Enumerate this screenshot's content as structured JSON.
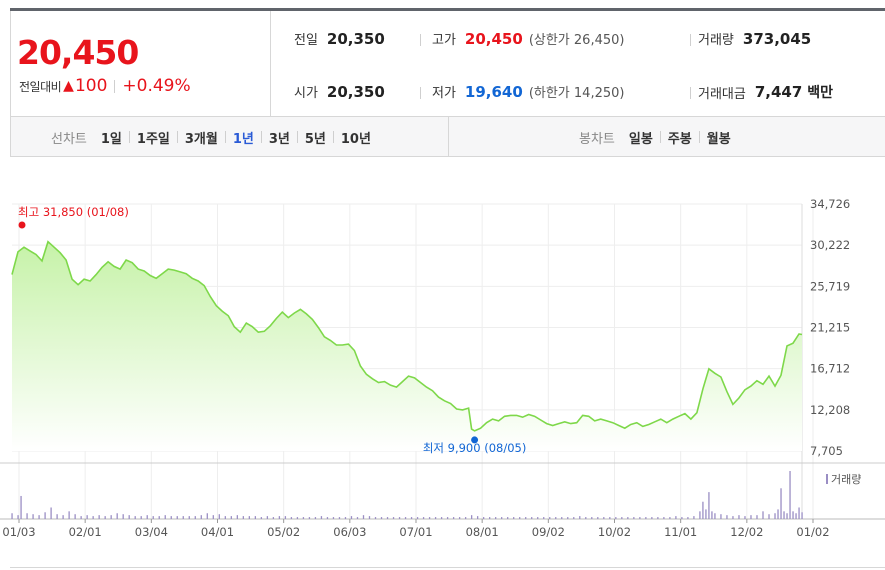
{
  "quote": {
    "price": "20,450",
    "change_label": "전일대비",
    "change_arrow": "▲",
    "change_value": "100",
    "change_pct": "+0.49%"
  },
  "info": {
    "prev_close": {
      "label": "전일",
      "value": "20,350"
    },
    "high": {
      "label": "고가",
      "value": "20,450",
      "extra": "(상한가 26,450)"
    },
    "volume": {
      "label": "거래량",
      "value": "373,045"
    },
    "open": {
      "label": "시가",
      "value": "20,350"
    },
    "low": {
      "label": "저가",
      "value": "19,640",
      "extra": "(하한가 14,250)"
    },
    "amount": {
      "label": "거래대금",
      "value": "7,447",
      "unit": "백만"
    }
  },
  "tabs": {
    "line_head": "선차트",
    "line_tabs": [
      "1일",
      "1주일",
      "3개월",
      "1년",
      "3년",
      "5년",
      "10년"
    ],
    "active": "1년",
    "candle_head": "봉차트",
    "candle_tabs": [
      "일봉",
      "주봉",
      "월봉"
    ]
  },
  "colors": {
    "up": "#e8141c",
    "down": "#1266d4",
    "line": "#7ed84a",
    "area_top": "#c6f2a8",
    "area_bottom": "#ffffff",
    "volume_bar": "#9a8ec4",
    "active_tab": "#2a5bd6"
  },
  "chart_data": {
    "type": "area",
    "ylim": [
      7705,
      34726
    ],
    "y_ticks": [
      "34,726",
      "30,222",
      "25,719",
      "21,215",
      "16,712",
      "12,208",
      "7,705"
    ],
    "x_ticks": [
      "01/03",
      "02/01",
      "03/04",
      "04/01",
      "05/02",
      "06/03",
      "07/01",
      "08/01",
      "09/02",
      "10/02",
      "11/01",
      "12/02",
      "01/02"
    ],
    "max_label": "최고 31,850 (01/08)",
    "min_label": "최저 9,900 (08/05)",
    "volume_legend": "거래량",
    "price_series": [
      [
        0,
        27000
      ],
      [
        2,
        29500
      ],
      [
        4,
        30000
      ],
      [
        6,
        29600
      ],
      [
        8,
        29200
      ],
      [
        10,
        28500
      ],
      [
        12,
        30600
      ],
      [
        14,
        30000
      ],
      [
        16,
        29400
      ],
      [
        18,
        28600
      ],
      [
        20,
        26500
      ],
      [
        22,
        25900
      ],
      [
        24,
        26500
      ],
      [
        26,
        26300
      ],
      [
        28,
        27000
      ],
      [
        30,
        27800
      ],
      [
        32,
        28400
      ],
      [
        34,
        27900
      ],
      [
        36,
        27600
      ],
      [
        38,
        28600
      ],
      [
        40,
        28300
      ],
      [
        42,
        27600
      ],
      [
        44,
        27400
      ],
      [
        46,
        26900
      ],
      [
        48,
        26600
      ],
      [
        50,
        27100
      ],
      [
        52,
        27600
      ],
      [
        54,
        27500
      ],
      [
        56,
        27300
      ],
      [
        58,
        27100
      ],
      [
        60,
        26600
      ],
      [
        62,
        26300
      ],
      [
        64,
        25800
      ],
      [
        66,
        24600
      ],
      [
        68,
        23600
      ],
      [
        70,
        23000
      ],
      [
        72,
        22500
      ],
      [
        74,
        21300
      ],
      [
        76,
        20700
      ],
      [
        78,
        21700
      ],
      [
        80,
        21300
      ],
      [
        82,
        20700
      ],
      [
        84,
        20800
      ],
      [
        86,
        21400
      ],
      [
        88,
        22200
      ],
      [
        90,
        22900
      ],
      [
        92,
        22300
      ],
      [
        94,
        22800
      ],
      [
        96,
        23200
      ],
      [
        98,
        22700
      ],
      [
        100,
        22100
      ],
      [
        102,
        21200
      ],
      [
        104,
        20200
      ],
      [
        106,
        19800
      ],
      [
        108,
        19300
      ],
      [
        110,
        19300
      ],
      [
        112,
        19400
      ],
      [
        114,
        18700
      ],
      [
        116,
        17000
      ],
      [
        118,
        16100
      ],
      [
        120,
        15600
      ],
      [
        122,
        15200
      ],
      [
        124,
        15300
      ],
      [
        126,
        14900
      ],
      [
        128,
        14700
      ],
      [
        130,
        15300
      ],
      [
        132,
        15900
      ],
      [
        134,
        15700
      ],
      [
        136,
        15200
      ],
      [
        138,
        14700
      ],
      [
        140,
        14300
      ],
      [
        142,
        13600
      ],
      [
        144,
        13200
      ],
      [
        146,
        12900
      ],
      [
        148,
        12300
      ],
      [
        150,
        12200
      ],
      [
        152,
        12400
      ],
      [
        153,
        10100
      ],
      [
        154,
        9900
      ],
      [
        156,
        10200
      ],
      [
        158,
        10800
      ],
      [
        160,
        11200
      ],
      [
        162,
        11000
      ],
      [
        164,
        11500
      ],
      [
        166,
        11600
      ],
      [
        168,
        11600
      ],
      [
        170,
        11400
      ],
      [
        172,
        11700
      ],
      [
        174,
        11500
      ],
      [
        176,
        11100
      ],
      [
        178,
        10700
      ],
      [
        180,
        10500
      ],
      [
        182,
        10700
      ],
      [
        184,
        10900
      ],
      [
        186,
        10700
      ],
      [
        188,
        10800
      ],
      [
        190,
        11600
      ],
      [
        192,
        11500
      ],
      [
        194,
        11000
      ],
      [
        196,
        11200
      ],
      [
        198,
        11000
      ],
      [
        200,
        10800
      ],
      [
        202,
        10500
      ],
      [
        204,
        10200
      ],
      [
        206,
        10600
      ],
      [
        208,
        10800
      ],
      [
        210,
        10400
      ],
      [
        212,
        10600
      ],
      [
        214,
        10900
      ],
      [
        216,
        11200
      ],
      [
        218,
        10800
      ],
      [
        220,
        11200
      ],
      [
        222,
        11500
      ],
      [
        224,
        11800
      ],
      [
        226,
        11200
      ],
      [
        228,
        11900
      ],
      [
        230,
        14500
      ],
      [
        232,
        16700
      ],
      [
        234,
        16200
      ],
      [
        236,
        15800
      ],
      [
        238,
        14200
      ],
      [
        240,
        12800
      ],
      [
        242,
        13500
      ],
      [
        244,
        14400
      ],
      [
        246,
        14800
      ],
      [
        248,
        15400
      ],
      [
        250,
        15000
      ],
      [
        252,
        15900
      ],
      [
        254,
        14800
      ],
      [
        256,
        16000
      ],
      [
        258,
        19200
      ],
      [
        260,
        19500
      ],
      [
        262,
        20500
      ],
      [
        263,
        20450
      ]
    ],
    "volume_bars": [
      [
        0,
        6
      ],
      [
        2,
        4
      ],
      [
        3,
        24
      ],
      [
        5,
        6
      ],
      [
        7,
        5
      ],
      [
        9,
        4
      ],
      [
        11,
        7
      ],
      [
        13,
        12
      ],
      [
        15,
        5
      ],
      [
        17,
        4
      ],
      [
        19,
        8
      ],
      [
        21,
        5
      ],
      [
        23,
        3
      ],
      [
        25,
        4
      ],
      [
        27,
        3
      ],
      [
        29,
        4
      ],
      [
        31,
        3
      ],
      [
        33,
        4
      ],
      [
        35,
        6
      ],
      [
        37,
        5
      ],
      [
        39,
        4
      ],
      [
        41,
        3
      ],
      [
        43,
        3
      ],
      [
        45,
        4
      ],
      [
        47,
        3
      ],
      [
        49,
        3
      ],
      [
        51,
        4
      ],
      [
        53,
        3
      ],
      [
        55,
        3
      ],
      [
        57,
        3
      ],
      [
        59,
        3
      ],
      [
        61,
        3
      ],
      [
        63,
        4
      ],
      [
        65,
        6
      ],
      [
        67,
        4
      ],
      [
        69,
        5
      ],
      [
        71,
        3
      ],
      [
        73,
        3
      ],
      [
        75,
        4
      ],
      [
        77,
        3
      ],
      [
        79,
        3
      ],
      [
        81,
        3
      ],
      [
        83,
        2
      ],
      [
        85,
        3
      ],
      [
        87,
        2
      ],
      [
        89,
        3
      ],
      [
        91,
        3
      ],
      [
        93,
        2
      ],
      [
        95,
        2
      ],
      [
        97,
        2
      ],
      [
        99,
        2
      ],
      [
        101,
        2
      ],
      [
        103,
        3
      ],
      [
        105,
        2
      ],
      [
        107,
        2
      ],
      [
        109,
        2
      ],
      [
        111,
        2
      ],
      [
        113,
        3
      ],
      [
        115,
        2
      ],
      [
        117,
        4
      ],
      [
        119,
        3
      ],
      [
        121,
        2
      ],
      [
        123,
        2
      ],
      [
        125,
        2
      ],
      [
        127,
        2
      ],
      [
        129,
        2
      ],
      [
        131,
        2
      ],
      [
        133,
        2
      ],
      [
        135,
        2
      ],
      [
        137,
        2
      ],
      [
        139,
        2
      ],
      [
        141,
        2
      ],
      [
        143,
        2
      ],
      [
        145,
        2
      ],
      [
        147,
        2
      ],
      [
        149,
        2
      ],
      [
        151,
        2
      ],
      [
        153,
        4
      ],
      [
        155,
        3
      ],
      [
        157,
        2
      ],
      [
        159,
        2
      ],
      [
        161,
        2
      ],
      [
        163,
        2
      ],
      [
        165,
        2
      ],
      [
        167,
        2
      ],
      [
        169,
        2
      ],
      [
        171,
        2
      ],
      [
        173,
        2
      ],
      [
        175,
        2
      ],
      [
        177,
        2
      ],
      [
        179,
        2
      ],
      [
        181,
        2
      ],
      [
        183,
        2
      ],
      [
        185,
        2
      ],
      [
        187,
        2
      ],
      [
        189,
        3
      ],
      [
        191,
        2
      ],
      [
        193,
        2
      ],
      [
        195,
        2
      ],
      [
        197,
        2
      ],
      [
        199,
        2
      ],
      [
        201,
        2
      ],
      [
        203,
        2
      ],
      [
        205,
        2
      ],
      [
        207,
        2
      ],
      [
        209,
        2
      ],
      [
        211,
        2
      ],
      [
        213,
        2
      ],
      [
        215,
        2
      ],
      [
        217,
        2
      ],
      [
        219,
        2
      ],
      [
        221,
        3
      ],
      [
        223,
        2
      ],
      [
        225,
        2
      ],
      [
        227,
        3
      ],
      [
        229,
        8
      ],
      [
        230,
        18
      ],
      [
        231,
        10
      ],
      [
        232,
        28
      ],
      [
        233,
        8
      ],
      [
        234,
        6
      ],
      [
        236,
        5
      ],
      [
        238,
        4
      ],
      [
        240,
        3
      ],
      [
        242,
        4
      ],
      [
        244,
        3
      ],
      [
        246,
        4
      ],
      [
        248,
        4
      ],
      [
        250,
        8
      ],
      [
        252,
        5
      ],
      [
        254,
        6
      ],
      [
        255,
        10
      ],
      [
        256,
        32
      ],
      [
        257,
        8
      ],
      [
        258,
        6
      ],
      [
        259,
        50
      ],
      [
        260,
        8
      ],
      [
        261,
        6
      ],
      [
        262,
        12
      ],
      [
        263,
        7
      ]
    ]
  }
}
